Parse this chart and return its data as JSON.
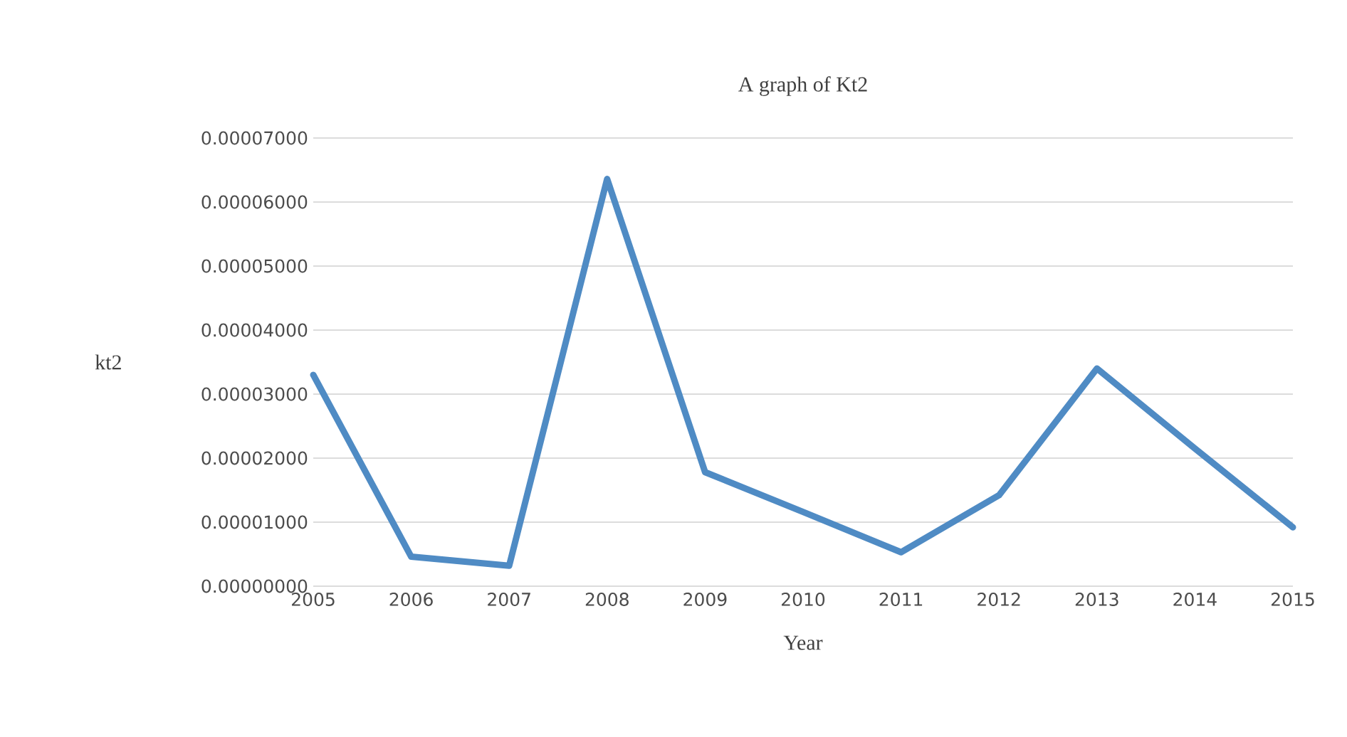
{
  "chart_data": {
    "type": "line",
    "title": "A graph of Kt2",
    "xlabel": "Year",
    "ylabel": "kt2",
    "x": [
      2005,
      2006,
      2007,
      2008,
      2009,
      2010,
      2011,
      2012,
      2013,
      2014,
      2015
    ],
    "series": [
      {
        "color": "#4f8bc4",
        "values": [
          3.3e-05,
          4.6e-06,
          3.2e-06,
          6.36e-05,
          1.78e-05,
          1.16e-05,
          5.3e-06,
          1.42e-05,
          3.4e-05,
          2.15e-05,
          9.2e-06
        ]
      }
    ],
    "xlim": [
      2005,
      2015
    ],
    "xticks": [
      2005,
      2006,
      2007,
      2008,
      2009,
      2010,
      2011,
      2012,
      2013,
      2014,
      2015
    ],
    "ylim": [
      0,
      7e-05
    ],
    "yticks": [
      {
        "value": 0,
        "label": "0.00000000"
      },
      {
        "value": 1e-05,
        "label": "0.00001000"
      },
      {
        "value": 2e-05,
        "label": "0.00002000"
      },
      {
        "value": 3e-05,
        "label": "0.00003000"
      },
      {
        "value": 4e-05,
        "label": "0.00004000"
      },
      {
        "value": 5e-05,
        "label": "0.00005000"
      },
      {
        "value": 6e-05,
        "label": "0.00006000"
      },
      {
        "value": 7e-05,
        "label": "0.00007000"
      }
    ],
    "grid": "y",
    "marker": "none",
    "line_style": "solid"
  }
}
